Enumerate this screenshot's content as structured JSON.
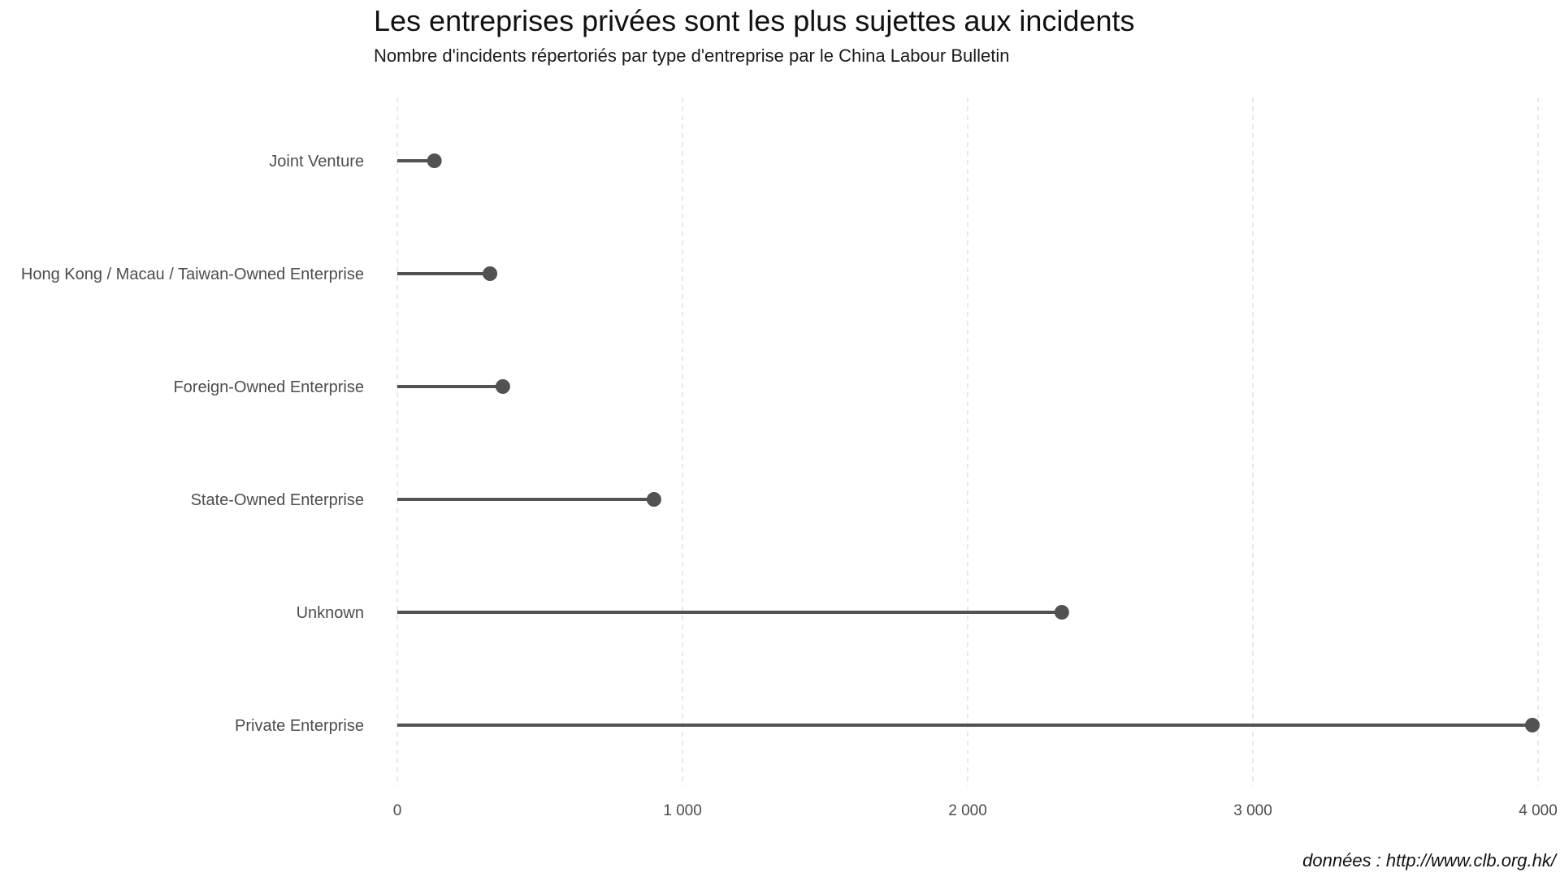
{
  "chart_data": {
    "type": "lollipop",
    "title": "Les entreprises privées sont les plus sujettes aux incidents",
    "subtitle": "Nombre d'incidents répertoriés par type d'entreprise par le China Labour Bulletin",
    "caption": "données : http://www.clb.org.hk/",
    "categories": [
      "Joint Venture",
      "Hong Kong / Macau / Taiwan-Owned Enterprise",
      "Foreign-Owned Enterprise",
      "State-Owned Enterprise",
      "Unknown",
      "Private Enterprise"
    ],
    "values": [
      130,
      325,
      370,
      900,
      2330,
      3980
    ],
    "xlim": [
      0,
      4000
    ],
    "x_ticks": [
      0,
      1000,
      2000,
      3000,
      4000
    ],
    "x_tick_labels": [
      "0",
      "1 000",
      "2 000",
      "3 000",
      "4 000"
    ],
    "xlabel": "",
    "ylabel": "",
    "grid": "vertical-major-dashed",
    "legend": "none",
    "colors": {
      "mark": "#525252",
      "grid": "#dcdcdc",
      "text": "#4d4d4d"
    }
  }
}
